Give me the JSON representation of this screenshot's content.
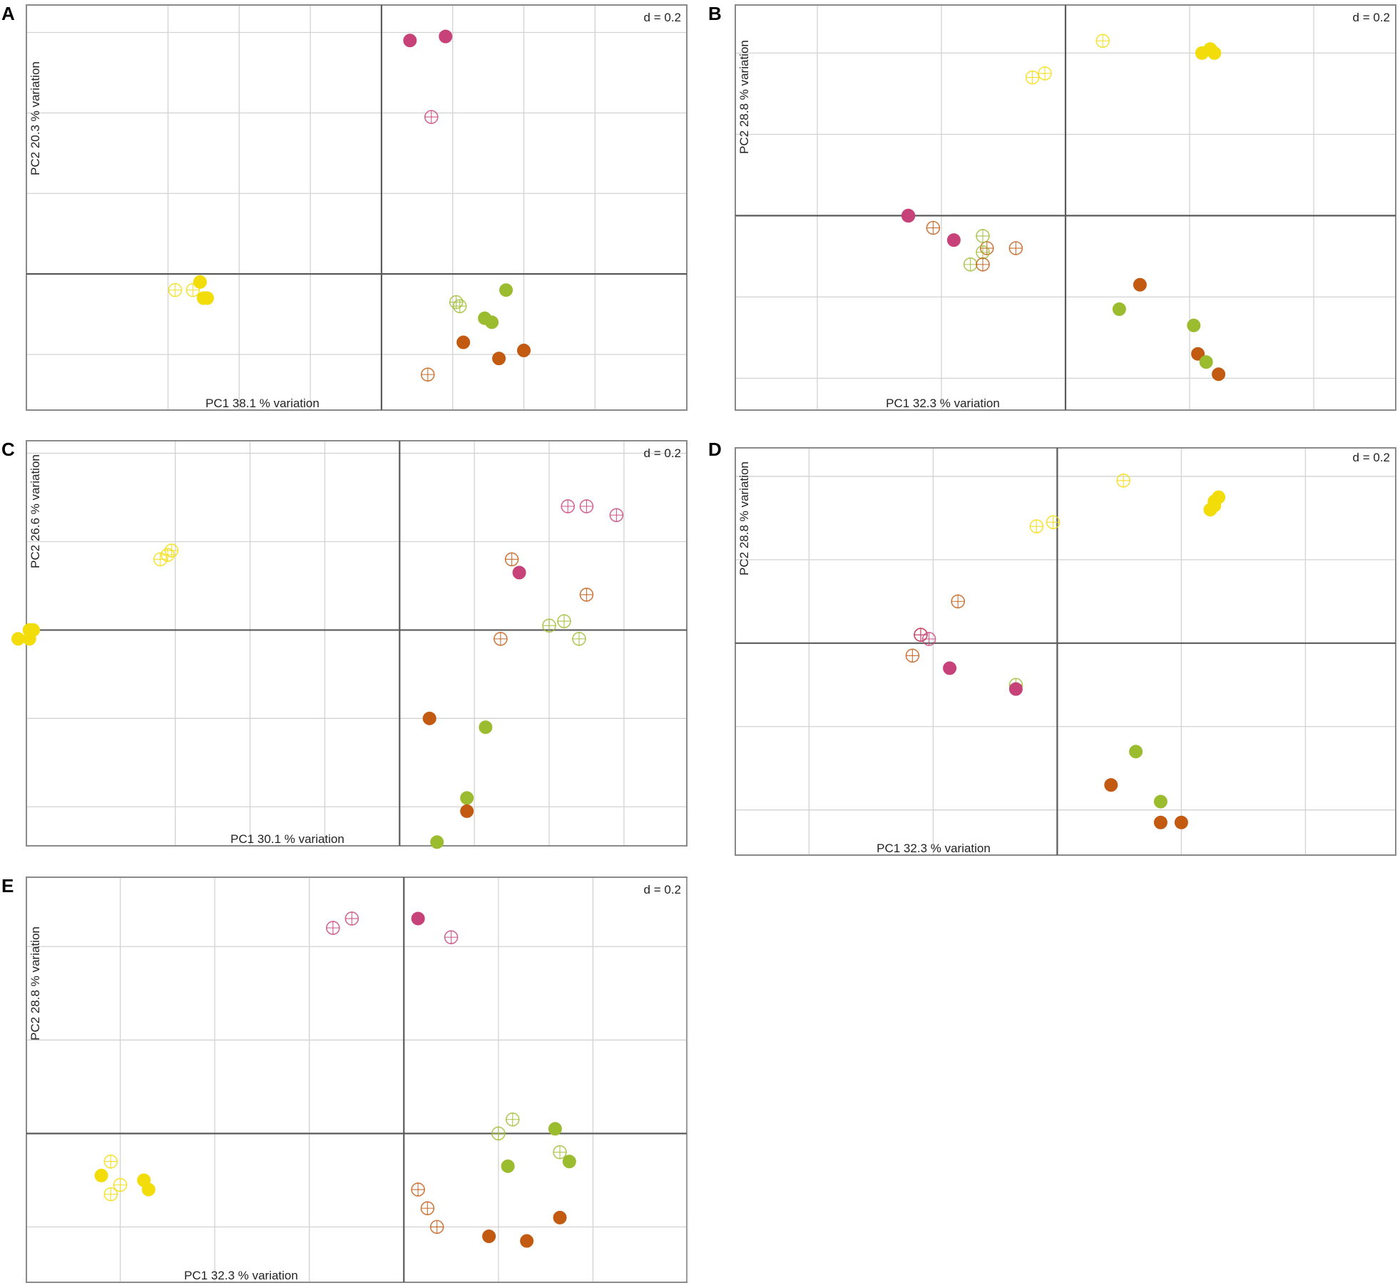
{
  "figure": {
    "colors": {
      "yellow": "#f2dc0a",
      "pink": "#c8427a",
      "green": "#9cbc30",
      "orange": "#c25a12"
    }
  },
  "chart_data": [
    {
      "panel": "A",
      "type": "scatter",
      "xlabel": "PC1 38.1 % variation",
      "ylabel": "PC2 20.3 % variation",
      "scale_label": "d = 0.2",
      "xlim": [
        -1.0,
        0.86
      ],
      "ylim": [
        -0.34,
        0.67
      ],
      "grid_x": [
        -0.6,
        -0.4,
        -0.2,
        0.2,
        0.4,
        0.6
      ],
      "grid_y": [
        -0.2,
        0.2,
        0.4,
        0.6
      ],
      "points": [
        {
          "x": 0.08,
          "y": 0.58,
          "color": "pink",
          "filled": true
        },
        {
          "x": 0.18,
          "y": 0.59,
          "color": "pink",
          "filled": true
        },
        {
          "x": 0.14,
          "y": 0.39,
          "color": "pink",
          "filled": false
        },
        {
          "x": -0.51,
          "y": -0.02,
          "color": "yellow",
          "filled": true
        },
        {
          "x": -0.53,
          "y": -0.04,
          "color": "yellow",
          "filled": false
        },
        {
          "x": -0.5,
          "y": -0.06,
          "color": "yellow",
          "filled": true
        },
        {
          "x": -0.49,
          "y": -0.06,
          "color": "yellow",
          "filled": true
        },
        {
          "x": -0.58,
          "y": -0.04,
          "color": "yellow",
          "filled": false
        },
        {
          "x": 0.21,
          "y": -0.07,
          "color": "green",
          "filled": false
        },
        {
          "x": 0.22,
          "y": -0.08,
          "color": "green",
          "filled": false
        },
        {
          "x": 0.35,
          "y": -0.04,
          "color": "green",
          "filled": true
        },
        {
          "x": 0.29,
          "y": -0.11,
          "color": "green",
          "filled": true
        },
        {
          "x": 0.31,
          "y": -0.12,
          "color": "green",
          "filled": true
        },
        {
          "x": 0.23,
          "y": -0.17,
          "color": "orange",
          "filled": true
        },
        {
          "x": 0.33,
          "y": -0.21,
          "color": "orange",
          "filled": true
        },
        {
          "x": 0.4,
          "y": -0.19,
          "color": "orange",
          "filled": true
        },
        {
          "x": 0.13,
          "y": -0.25,
          "color": "orange",
          "filled": false
        }
      ]
    },
    {
      "panel": "B",
      "type": "scatter",
      "xlabel": "PC1 32.3 % variation",
      "ylabel": "PC2 28.8 % variation",
      "scale_label": "d = 0.2",
      "xlim": [
        -0.8,
        0.8
      ],
      "ylim": [
        -0.48,
        0.52
      ],
      "grid_x": [
        -0.6,
        -0.3,
        0.3,
        0.6
      ],
      "grid_y": [
        -0.4,
        -0.2,
        0.2,
        0.4
      ],
      "points": [
        {
          "x": 0.09,
          "y": 0.43,
          "color": "yellow",
          "filled": false
        },
        {
          "x": -0.08,
          "y": 0.34,
          "color": "yellow",
          "filled": false
        },
        {
          "x": -0.05,
          "y": 0.35,
          "color": "yellow",
          "filled": false
        },
        {
          "x": 0.33,
          "y": 0.4,
          "color": "yellow",
          "filled": true
        },
        {
          "x": 0.35,
          "y": 0.41,
          "color": "yellow",
          "filled": true
        },
        {
          "x": 0.36,
          "y": 0.4,
          "color": "yellow",
          "filled": true
        },
        {
          "x": -0.38,
          "y": 0.0,
          "color": "pink",
          "filled": true
        },
        {
          "x": -0.38,
          "y": 0.0,
          "color": "pink",
          "filled": false
        },
        {
          "x": -0.27,
          "y": -0.06,
          "color": "pink",
          "filled": true
        },
        {
          "x": -0.32,
          "y": -0.03,
          "color": "orange",
          "filled": false
        },
        {
          "x": -0.19,
          "y": -0.08,
          "color": "orange",
          "filled": false
        },
        {
          "x": -0.12,
          "y": -0.08,
          "color": "orange",
          "filled": false
        },
        {
          "x": -0.2,
          "y": -0.05,
          "color": "green",
          "filled": false
        },
        {
          "x": -0.2,
          "y": -0.09,
          "color": "green",
          "filled": false
        },
        {
          "x": -0.23,
          "y": -0.12,
          "color": "green",
          "filled": false
        },
        {
          "x": -0.2,
          "y": -0.12,
          "color": "orange",
          "filled": false
        },
        {
          "x": 0.18,
          "y": -0.17,
          "color": "orange",
          "filled": true
        },
        {
          "x": 0.13,
          "y": -0.23,
          "color": "green",
          "filled": true
        },
        {
          "x": 0.31,
          "y": -0.27,
          "color": "green",
          "filled": true
        },
        {
          "x": 0.32,
          "y": -0.34,
          "color": "orange",
          "filled": true
        },
        {
          "x": 0.34,
          "y": -0.36,
          "color": "green",
          "filled": true
        },
        {
          "x": 0.37,
          "y": -0.39,
          "color": "orange",
          "filled": true
        }
      ]
    },
    {
      "panel": "C",
      "type": "scatter",
      "xlabel": "PC1 30.1 % variation",
      "ylabel": "PC2 26.6 % variation",
      "scale_label": "d = 0.2",
      "xlim": [
        -1.0,
        0.77
      ],
      "ylim": [
        -0.49,
        0.43
      ],
      "grid_x": [
        -0.6,
        -0.4,
        -0.2,
        0.2,
        0.4,
        0.6
      ],
      "grid_y": [
        -0.4,
        -0.2,
        0.2,
        0.4
      ],
      "points": [
        {
          "x": -0.62,
          "y": 0.17,
          "color": "yellow",
          "filled": false
        },
        {
          "x": -0.64,
          "y": 0.16,
          "color": "yellow",
          "filled": false
        },
        {
          "x": -0.61,
          "y": 0.18,
          "color": "yellow",
          "filled": false
        },
        {
          "x": -0.99,
          "y": 0.0,
          "color": "yellow",
          "filled": true
        },
        {
          "x": -0.99,
          "y": -0.02,
          "color": "yellow",
          "filled": true
        },
        {
          "x": -0.98,
          "y": 0.0,
          "color": "yellow",
          "filled": true
        },
        {
          "x": -1.02,
          "y": -0.02,
          "color": "yellow",
          "filled": true
        },
        {
          "x": 0.45,
          "y": 0.28,
          "color": "pink",
          "filled": false
        },
        {
          "x": 0.5,
          "y": 0.28,
          "color": "pink",
          "filled": false
        },
        {
          "x": 0.58,
          "y": 0.26,
          "color": "pink",
          "filled": false
        },
        {
          "x": 0.3,
          "y": 0.16,
          "color": "orange",
          "filled": false
        },
        {
          "x": 0.32,
          "y": 0.13,
          "color": "pink",
          "filled": true
        },
        {
          "x": 0.5,
          "y": 0.08,
          "color": "orange",
          "filled": false
        },
        {
          "x": 0.4,
          "y": 0.01,
          "color": "green",
          "filled": false
        },
        {
          "x": 0.44,
          "y": 0.02,
          "color": "green",
          "filled": false
        },
        {
          "x": 0.27,
          "y": -0.02,
          "color": "orange",
          "filled": false
        },
        {
          "x": 0.48,
          "y": -0.02,
          "color": "green",
          "filled": false
        },
        {
          "x": 0.08,
          "y": -0.2,
          "color": "orange",
          "filled": true
        },
        {
          "x": 0.23,
          "y": -0.22,
          "color": "green",
          "filled": true
        },
        {
          "x": 0.18,
          "y": -0.38,
          "color": "green",
          "filled": true
        },
        {
          "x": 0.18,
          "y": -0.41,
          "color": "orange",
          "filled": true
        },
        {
          "x": 0.1,
          "y": -0.48,
          "color": "green",
          "filled": true
        }
      ]
    },
    {
      "panel": "D",
      "type": "scatter",
      "xlabel": "PC1 32.3 % variation",
      "ylabel": "PC2 28.8 % variation",
      "scale_label": "d = 0.2",
      "xlim": [
        -0.78,
        0.82
      ],
      "ylim": [
        -0.51,
        0.47
      ],
      "grid_x": [
        -0.6,
        -0.3,
        0.3,
        0.6
      ],
      "grid_y": [
        -0.4,
        -0.2,
        0.2,
        0.4
      ],
      "points": [
        {
          "x": 0.16,
          "y": 0.39,
          "color": "yellow",
          "filled": false
        },
        {
          "x": -0.05,
          "y": 0.28,
          "color": "yellow",
          "filled": false
        },
        {
          "x": -0.01,
          "y": 0.29,
          "color": "yellow",
          "filled": false
        },
        {
          "x": 0.39,
          "y": 0.35,
          "color": "yellow",
          "filled": true
        },
        {
          "x": 0.38,
          "y": 0.34,
          "color": "yellow",
          "filled": true
        },
        {
          "x": 0.38,
          "y": 0.33,
          "color": "yellow",
          "filled": true
        },
        {
          "x": 0.37,
          "y": 0.32,
          "color": "yellow",
          "filled": true
        },
        {
          "x": -0.24,
          "y": 0.1,
          "color": "orange",
          "filled": false
        },
        {
          "x": -0.33,
          "y": 0.02,
          "color": "orange",
          "filled": false
        },
        {
          "x": -0.33,
          "y": 0.02,
          "color": "pink",
          "filled": false
        },
        {
          "x": -0.31,
          "y": 0.01,
          "color": "pink",
          "filled": false
        },
        {
          "x": -0.35,
          "y": -0.03,
          "color": "orange",
          "filled": false
        },
        {
          "x": -0.26,
          "y": -0.06,
          "color": "pink",
          "filled": true
        },
        {
          "x": -0.1,
          "y": -0.1,
          "color": "green",
          "filled": false
        },
        {
          "x": -0.1,
          "y": -0.11,
          "color": "pink",
          "filled": true
        },
        {
          "x": 0.19,
          "y": -0.26,
          "color": "green",
          "filled": true
        },
        {
          "x": 0.13,
          "y": -0.34,
          "color": "orange",
          "filled": true
        },
        {
          "x": 0.25,
          "y": -0.38,
          "color": "green",
          "filled": true
        },
        {
          "x": 0.25,
          "y": -0.43,
          "color": "orange",
          "filled": true
        },
        {
          "x": 0.3,
          "y": -0.43,
          "color": "orange",
          "filled": true
        }
      ]
    },
    {
      "panel": "E",
      "type": "scatter",
      "xlabel": "PC1 32.3 % variation",
      "ylabel": "PC2 28.8 % variation",
      "scale_label": "d = 0.2",
      "xlim": [
        -0.8,
        0.6
      ],
      "ylim": [
        -0.32,
        0.55
      ],
      "grid_x": [
        -0.6,
        -0.4,
        -0.2,
        0.2,
        0.4,
        0.6
      ],
      "grid_y": [
        -0.2,
        0.2,
        0.4
      ],
      "points": [
        {
          "x": -0.11,
          "y": 0.46,
          "color": "pink",
          "filled": false
        },
        {
          "x": -0.15,
          "y": 0.44,
          "color": "pink",
          "filled": false
        },
        {
          "x": 0.03,
          "y": 0.46,
          "color": "pink",
          "filled": true
        },
        {
          "x": 0.1,
          "y": 0.42,
          "color": "pink",
          "filled": false
        },
        {
          "x": -0.62,
          "y": -0.06,
          "color": "yellow",
          "filled": false
        },
        {
          "x": -0.64,
          "y": -0.09,
          "color": "yellow",
          "filled": true
        },
        {
          "x": -0.6,
          "y": -0.11,
          "color": "yellow",
          "filled": false
        },
        {
          "x": -0.62,
          "y": -0.13,
          "color": "yellow",
          "filled": false
        },
        {
          "x": -0.55,
          "y": -0.1,
          "color": "yellow",
          "filled": true
        },
        {
          "x": -0.54,
          "y": -0.12,
          "color": "yellow",
          "filled": true
        },
        {
          "x": 0.23,
          "y": 0.03,
          "color": "green",
          "filled": false
        },
        {
          "x": 0.2,
          "y": 0.0,
          "color": "green",
          "filled": false
        },
        {
          "x": 0.32,
          "y": 0.01,
          "color": "green",
          "filled": true
        },
        {
          "x": 0.33,
          "y": -0.04,
          "color": "green",
          "filled": false
        },
        {
          "x": 0.35,
          "y": -0.06,
          "color": "green",
          "filled": true
        },
        {
          "x": 0.22,
          "y": -0.07,
          "color": "green",
          "filled": true
        },
        {
          "x": 0.03,
          "y": -0.12,
          "color": "orange",
          "filled": false
        },
        {
          "x": 0.05,
          "y": -0.16,
          "color": "orange",
          "filled": false
        },
        {
          "x": 0.07,
          "y": -0.2,
          "color": "orange",
          "filled": false
        },
        {
          "x": 0.18,
          "y": -0.22,
          "color": "orange",
          "filled": true
        },
        {
          "x": 0.26,
          "y": -0.23,
          "color": "orange",
          "filled": true
        },
        {
          "x": 0.33,
          "y": -0.18,
          "color": "orange",
          "filled": true
        }
      ]
    }
  ]
}
